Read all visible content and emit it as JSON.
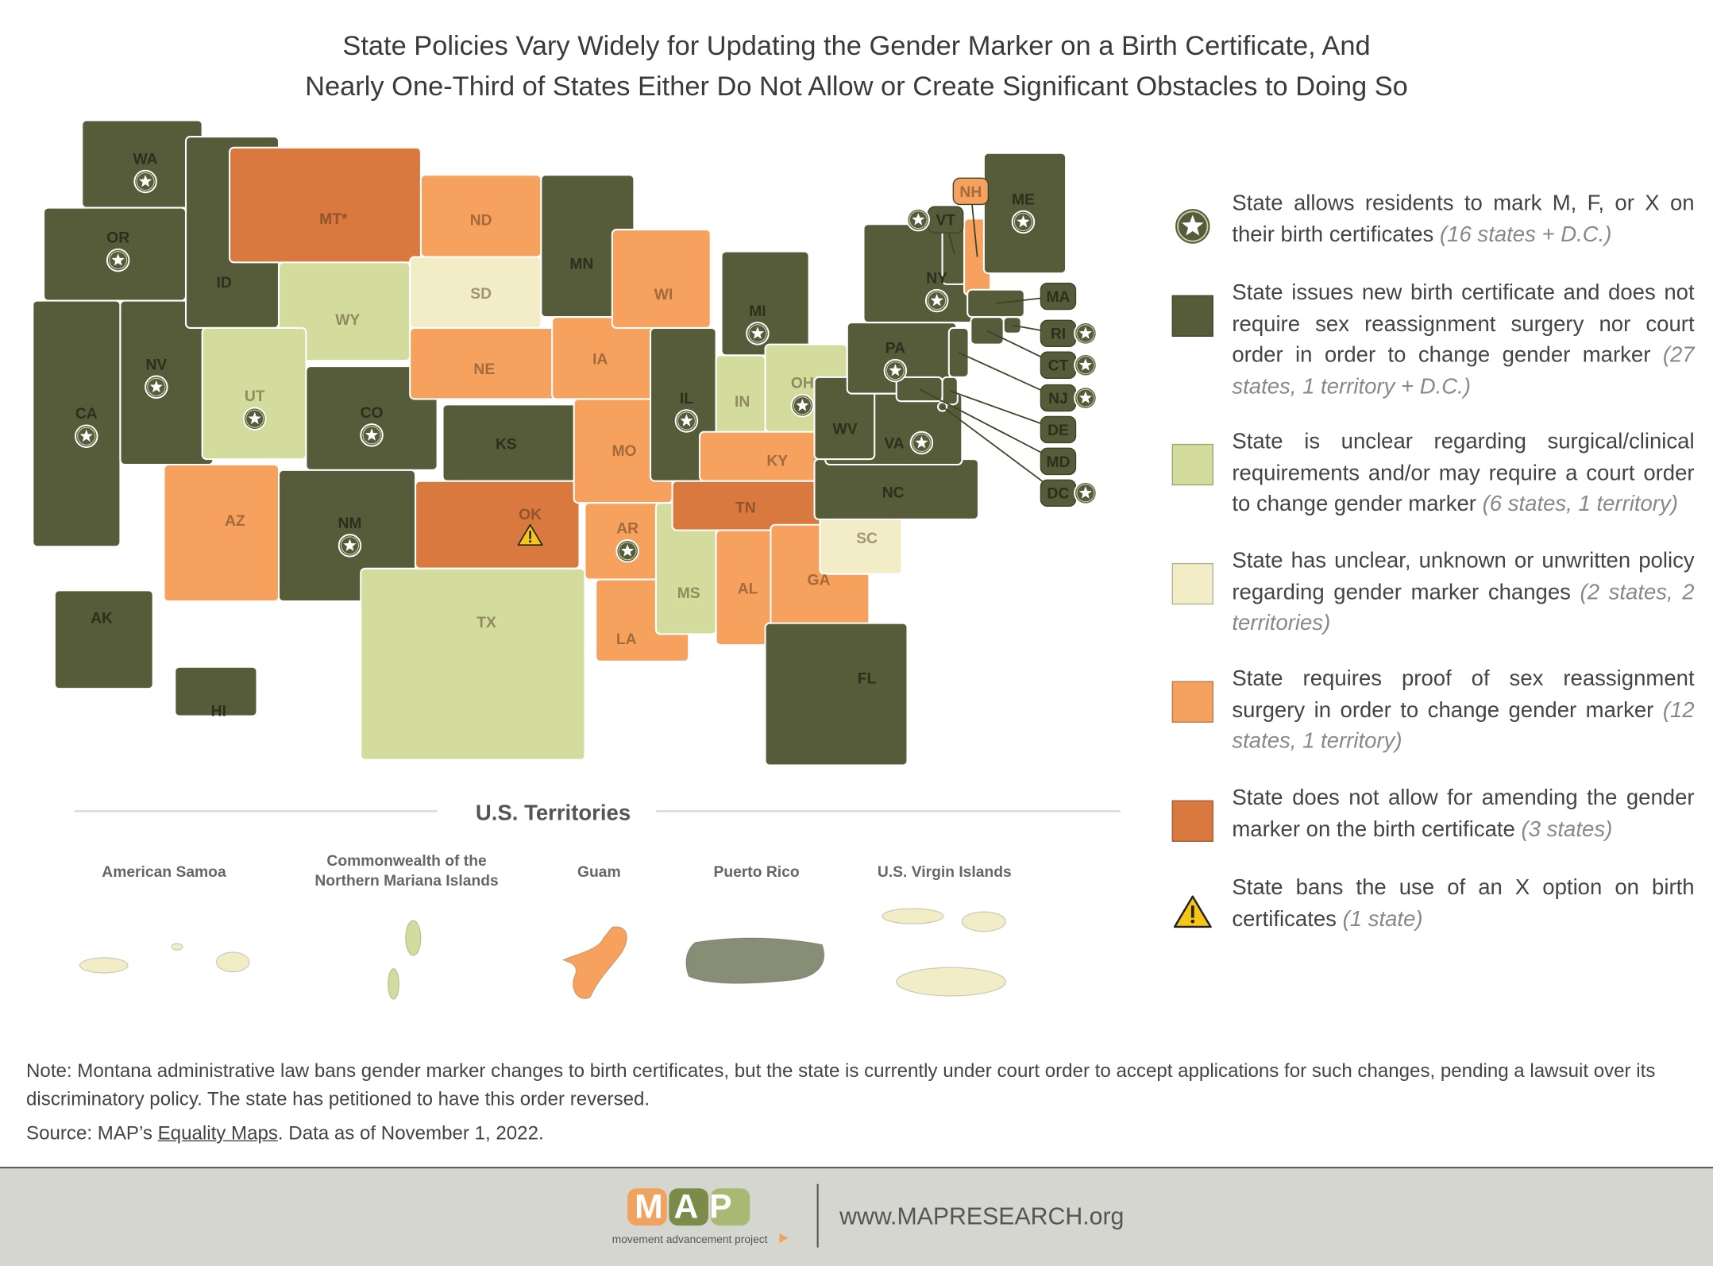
{
  "title": [
    "State Policies Vary Widely for Updating the Gender Marker on a Birth Certificate, And",
    "Nearly One-Third of States Either Do Not Allow or Create Significant Obstacles to Doing So"
  ],
  "legend": [
    {
      "icon": "star",
      "text": "State allows residents to mark M, F, or X on their birth certificates",
      "note": "(16 states + D.C.)"
    },
    {
      "color": "#565c3a",
      "text": "State issues new birth certificate and does not require sex reassignment surgery nor court order in order to change gender marker",
      "note": "(27 states, 1 territory + D.C.)"
    },
    {
      "color": "#d3dc9c",
      "text": "State is unclear regarding surgical/clinical requirements and/or may require a court order to change gender marker",
      "note": "(6 states, 1 territory)"
    },
    {
      "color": "#f2edc6",
      "text": "State has unclear, unknown or unwritten policy regarding gender marker changes",
      "note": "(2 states, 2 territories)"
    },
    {
      "color": "#f7a15e",
      "text": "State requires proof of sex reassignment surgery in order to change gender marker",
      "note": "(12 states, 1 territory)"
    },
    {
      "color": "#d9793f",
      "text": "State does not allow for amending the gender marker on the birth certificate",
      "note": "(3 states)"
    },
    {
      "icon": "warning",
      "text": "State bans the use of an X option on birth certificates",
      "note": "(1 state)"
    }
  ],
  "states": [
    {
      "label": "WA",
      "category": 1,
      "star": true
    },
    {
      "label": "OR",
      "category": 1,
      "star": true
    },
    {
      "label": "CA",
      "category": 1,
      "star": true
    },
    {
      "label": "NV",
      "category": 1,
      "star": true
    },
    {
      "label": "ID",
      "category": 1
    },
    {
      "label": "MT*",
      "category": 5
    },
    {
      "label": "WY",
      "category": 2
    },
    {
      "label": "UT",
      "category": 2,
      "star": true
    },
    {
      "label": "AZ",
      "category": 4
    },
    {
      "label": "CO",
      "category": 1,
      "star": true
    },
    {
      "label": "NM",
      "category": 1,
      "star": true
    },
    {
      "label": "ND",
      "category": 4
    },
    {
      "label": "SD",
      "category": 3
    },
    {
      "label": "NE",
      "category": 4
    },
    {
      "label": "KS",
      "category": 1
    },
    {
      "label": "OK",
      "category": 5,
      "ban": true
    },
    {
      "label": "TX",
      "category": 2
    },
    {
      "label": "MN",
      "category": 1
    },
    {
      "label": "IA",
      "category": 4
    },
    {
      "label": "MO",
      "category": 4
    },
    {
      "label": "AR",
      "category": 4,
      "star": true
    },
    {
      "label": "LA",
      "category": 4
    },
    {
      "label": "WI",
      "category": 4
    },
    {
      "label": "IL",
      "category": 1,
      "star": true
    },
    {
      "label": "MS",
      "category": 2
    },
    {
      "label": "MI",
      "category": 1,
      "star": true
    },
    {
      "label": "IN",
      "category": 2
    },
    {
      "label": "OH",
      "category": 2,
      "star": true
    },
    {
      "label": "KY",
      "category": 4
    },
    {
      "label": "TN",
      "category": 5
    },
    {
      "label": "AL",
      "category": 4
    },
    {
      "label": "GA",
      "category": 4
    },
    {
      "label": "FL",
      "category": 1
    },
    {
      "label": "SC",
      "category": 3
    },
    {
      "label": "NC",
      "category": 1
    },
    {
      "label": "VA",
      "category": 1,
      "star": true
    },
    {
      "label": "WV",
      "category": 1
    },
    {
      "label": "PA",
      "category": 1,
      "star": true
    },
    {
      "label": "NY",
      "category": 1,
      "star": true
    },
    {
      "label": "VT",
      "category": 1,
      "star": true
    },
    {
      "label": "NH",
      "category": 4
    },
    {
      "label": "ME",
      "category": 1,
      "star": true
    },
    {
      "label": "MA",
      "category": 1
    },
    {
      "label": "RI",
      "category": 1,
      "star": true
    },
    {
      "label": "CT",
      "category": 1,
      "star": true
    },
    {
      "label": "NJ",
      "category": 1,
      "star": true
    },
    {
      "label": "DE",
      "category": 1
    },
    {
      "label": "MD",
      "category": 1
    },
    {
      "label": "DC",
      "category": 1,
      "star": true
    },
    {
      "label": "AK",
      "category": 1
    },
    {
      "label": "HI",
      "category": 1
    }
  ],
  "territories": {
    "heading": "U.S. Territories",
    "items": [
      {
        "name": "American Samoa",
        "category": 3
      },
      {
        "name": "Commonwealth of the Northern Mariana Islands",
        "category": 2
      },
      {
        "name": "Guam",
        "category": 4
      },
      {
        "name": "Puerto Rico",
        "category": 1
      },
      {
        "name": "U.S. Virgin Islands",
        "category": 3
      }
    ]
  },
  "note": "Note: Montana administrative law bans gender marker changes to birth certificates, but the state is currently under court order to accept applications for such changes, pending a lawsuit over its discriminatory policy. The state has petitioned to have this order reversed.",
  "source": {
    "prefix": "Source: MAP’s ",
    "link": "Equality Maps",
    "suffix": ". Data as of November 1, 2022."
  },
  "footer": {
    "logo": "MAP",
    "tagline": "movement advancement project",
    "url": "www.MAPRESEARCH.org"
  }
}
